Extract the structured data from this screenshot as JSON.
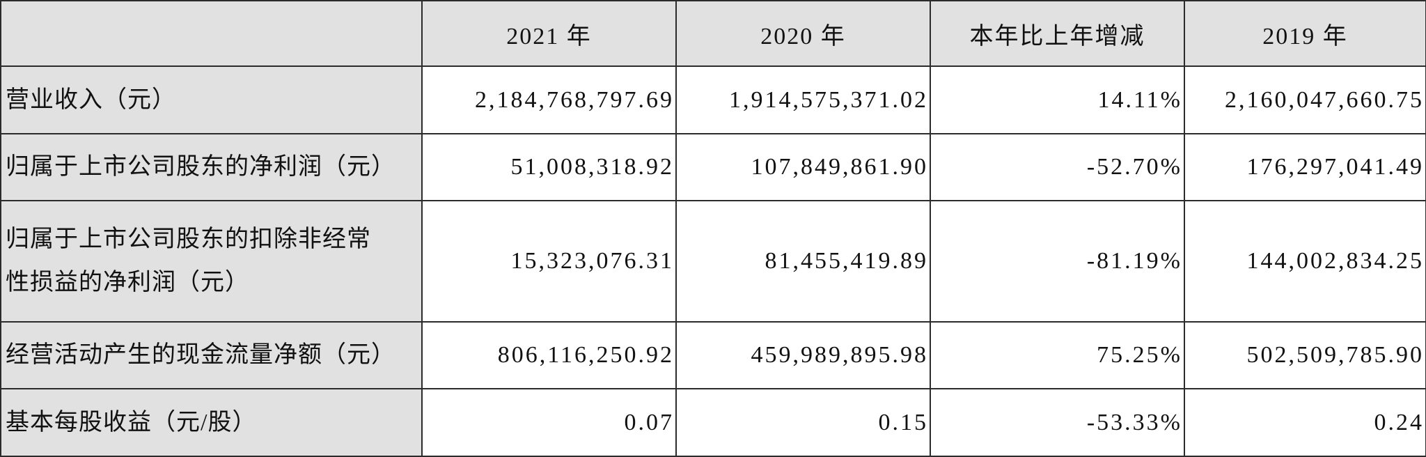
{
  "table": {
    "header": [
      "2021 年",
      "2020 年",
      "本年比上年增减",
      "2019 年"
    ],
    "rows": [
      [
        "营业收入（元）",
        "2,184,768,797.69",
        "1,914,575,371.02",
        "14.11%",
        "2,160,047,660.75"
      ],
      [
        "归属于上市公司股东的净利润（元）",
        "51,008,318.92",
        "107,849,861.90",
        "-52.70%",
        "176,297,041.49"
      ],
      [
        "归属于上市公司股东的扣除非经常性损益的净利润（元）",
        "15,323,076.31",
        "81,455,419.89",
        "-81.19%",
        "144,002,834.25"
      ],
      [
        "经营活动产生的现金流量净额（元）",
        "806,116,250.92",
        "459,989,895.98",
        "75.25%",
        "502,509,785.90"
      ],
      [
        "基本每股收益（元/股）",
        "0.07",
        "0.15",
        "-53.33%",
        "0.24"
      ]
    ]
  }
}
